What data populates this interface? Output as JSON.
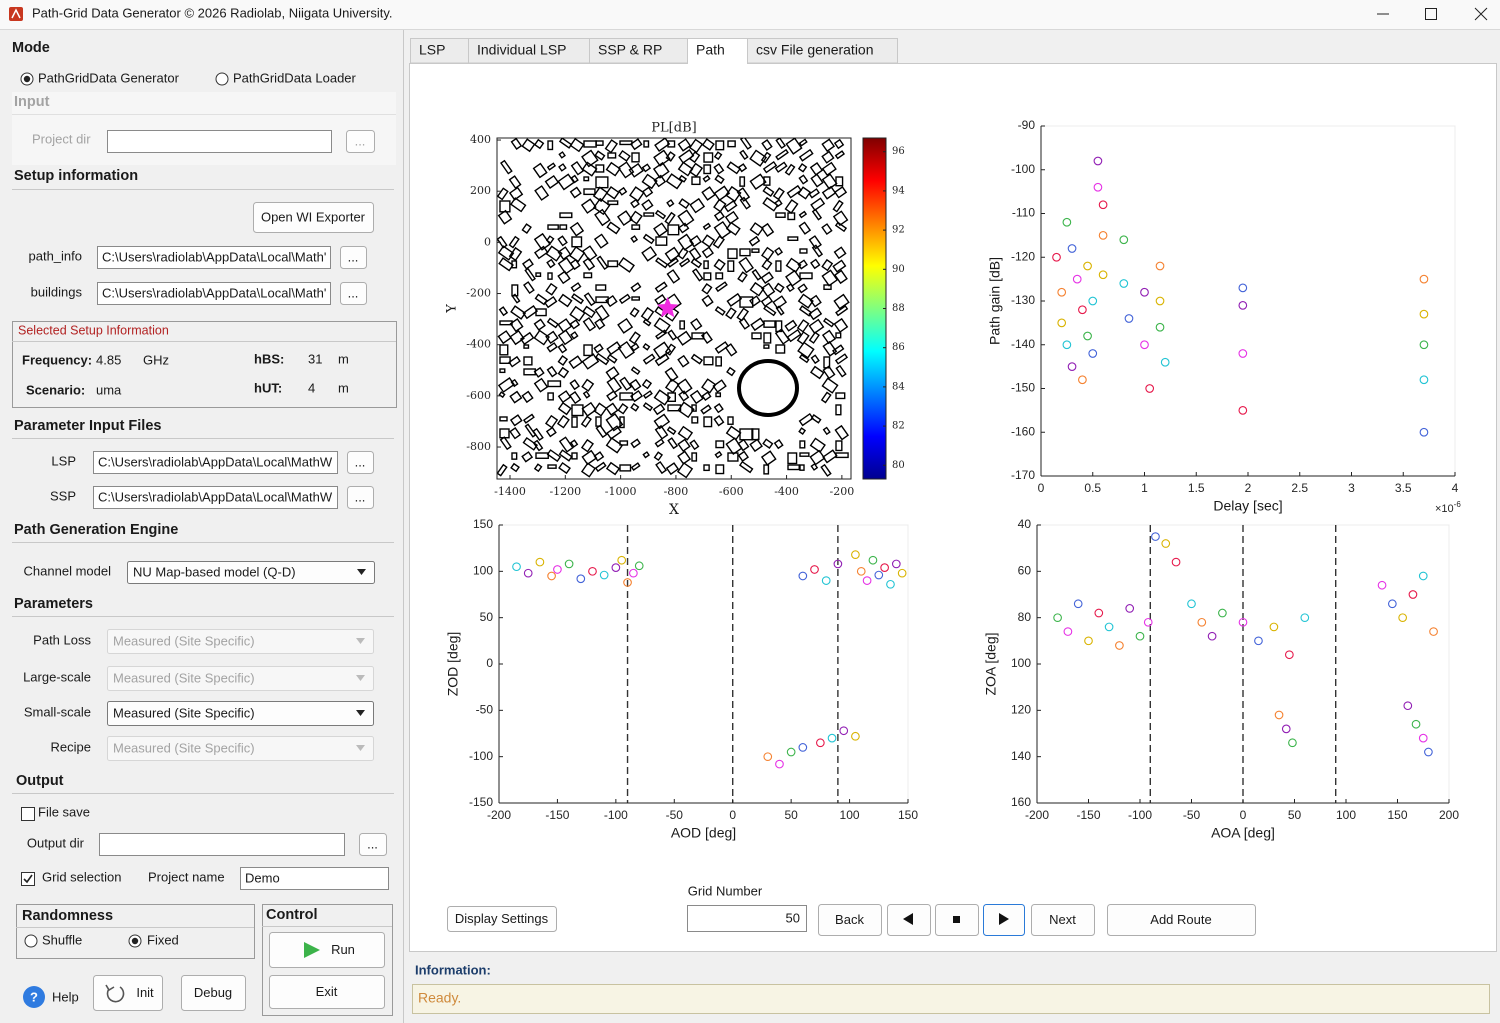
{
  "window": {
    "title": "Path-Grid Data Generator © 2026 Radiolab, Niigata University."
  },
  "mode": {
    "title": "Mode",
    "generator": "PathGridData Generator",
    "loader": "PathGridData Loader",
    "selected": "generator"
  },
  "input": {
    "title": "Input",
    "project_dir": "Project dir",
    "browse": "..."
  },
  "setup": {
    "title": "Setup information",
    "exporter": "Open WI Exporter",
    "path_info": {
      "label": "path_info",
      "value": "C:\\Users\\radiolab\\AppData\\Local\\Math'",
      "browse": "..."
    },
    "buildings": {
      "label": "buildings",
      "value": "C:\\Users\\radiolab\\AppData\\Local\\Math'",
      "browse": "..."
    }
  },
  "selected": {
    "title": "Selected Setup Information",
    "frequency_label": "Frequency:",
    "frequency": 4.85,
    "frequency_unit": "GHz",
    "hbs_label": "hBS:",
    "hbs": 31,
    "hbs_unit": "m",
    "scenario_label": "Scenario:",
    "scenario": "uma",
    "hut_label": "hUT:",
    "hut": 4,
    "hut_unit": "m"
  },
  "parameter_files": {
    "title": "Parameter Input Files",
    "lsp": {
      "label": "LSP",
      "value": "C:\\Users\\radiolab\\AppData\\Local\\MathW",
      "browse": "..."
    },
    "ssp": {
      "label": "SSP",
      "value": "C:\\Users\\radiolab\\AppData\\Local\\MathW",
      "browse": "..."
    }
  },
  "engine": {
    "title": "Path Generation Engine",
    "channel_model_label": "Channel model",
    "channel_model": "NU Map-based model (Q-D)"
  },
  "parameters": {
    "title": "Parameters",
    "rows": [
      {
        "label": "Path Loss",
        "value": "Measured (Site Specific)",
        "enabled": false
      },
      {
        "label": "Large-scale",
        "value": "Measured (Site Specific)",
        "enabled": false
      },
      {
        "label": "Small-scale",
        "value": "Measured (Site Specific)",
        "enabled": true
      },
      {
        "label": "Recipe",
        "value": "Measured (Site Specific)",
        "enabled": false
      }
    ]
  },
  "output": {
    "title": "Output",
    "file_save": "File save",
    "file_save_checked": false,
    "output_dir": "Output dir",
    "browse": "...",
    "grid_selection": "Grid selection",
    "grid_selection_checked": true,
    "project_name_label": "Project name",
    "project_name": "Demo"
  },
  "randomness": {
    "title": "Randomness",
    "shuffle": "Shuffle",
    "fixed": "Fixed",
    "selected": "fixed"
  },
  "control": {
    "title": "Control",
    "run": "Run",
    "exit": "Exit"
  },
  "footer": {
    "help_icon": "?",
    "help": "Help",
    "init": "Init",
    "debug": "Debug"
  },
  "tabs": {
    "items": [
      "LSP",
      "Individual LSP",
      "SSP & RP",
      "Path",
      "csv File generation"
    ],
    "active": 3
  },
  "chart_data": [
    {
      "type": "map",
      "title": "PL[dB]",
      "xlabel": "X",
      "ylabel": "Y",
      "xlim": [
        -1447,
        -167
      ],
      "xticks": [
        -1400,
        -1200,
        -1000,
        -800,
        -600,
        -400,
        -200
      ],
      "ylim": [
        -925,
        408
      ],
      "yticks": [
        -800,
        -600,
        -400,
        -200,
        0,
        200,
        400
      ],
      "colorbar": {
        "clim": [
          79.3,
          96.7
        ],
        "ticks": [
          80,
          82,
          84,
          86,
          88,
          90,
          92,
          94,
          96
        ]
      },
      "marker": {
        "x": -830,
        "y": -257,
        "color": "#f02ce0"
      }
    },
    {
      "type": "scatter",
      "xlabel": "Delay [sec]",
      "ylabel": "Path gain [dB]",
      "x_scale": {
        "base": "×10",
        "exponent": "-6"
      },
      "xlim": [
        0,
        4
      ],
      "xticks": [
        0,
        0.5,
        1,
        1.5,
        2,
        2.5,
        3,
        3.5,
        4
      ],
      "ylim": [
        -170,
        -90
      ],
      "yticks": [
        -170,
        -160,
        -150,
        -140,
        -130,
        -120,
        -110,
        -100,
        -90
      ],
      "palette": [
        "#e6194b",
        "#f58231",
        "#d9b300",
        "#3cb44b",
        "#22c4d4",
        "#4363d8",
        "#911eb4",
        "#e632e6"
      ],
      "x": [
        0.15,
        0.2,
        0.2,
        0.25,
        0.25,
        0.3,
        0.3,
        0.35,
        0.4,
        0.4,
        0.45,
        0.45,
        0.5,
        0.5,
        0.55,
        0.55,
        0.6,
        0.6,
        0.6,
        0.8,
        0.8,
        0.85,
        1.0,
        1.0,
        1.05,
        1.15,
        1.15,
        1.15,
        1.2,
        1.95,
        1.95,
        1.95,
        1.95,
        3.7,
        3.7,
        3.7,
        3.7,
        3.7
      ],
      "y": [
        -120,
        -128,
        -135,
        -112,
        -140,
        -118,
        -145,
        -125,
        -132,
        -148,
        -122,
        -138,
        -130,
        -142,
        -98,
        -104,
        -108,
        -115,
        -124,
        -116,
        -126,
        -134,
        -128,
        -140,
        -150,
        -122,
        -130,
        -136,
        -144,
        -127,
        -131,
        -142,
        -155,
        -125,
        -133,
        -140,
        -148,
        -160
      ]
    },
    {
      "type": "scatter",
      "xlabel": "AOD [deg]",
      "ylabel": "ZOD [deg]",
      "xlim": [
        -200,
        150
      ],
      "xticks": [
        -200,
        -150,
        -100,
        -50,
        0,
        50,
        100,
        150
      ],
      "ylim": [
        -150,
        150
      ],
      "yticks": [
        -150,
        -100,
        -50,
        0,
        50,
        100,
        150
      ],
      "vlines": [
        -90,
        0,
        90
      ],
      "palette": [
        "#22c4d4",
        "#911eb4",
        "#d9b300",
        "#f58231",
        "#e632e6",
        "#3cb44b",
        "#4363d8",
        "#e6194b"
      ],
      "x": [
        -185,
        -175,
        -165,
        -155,
        -150,
        -140,
        -130,
        -120,
        -110,
        -100,
        -95,
        -90,
        -85,
        -80,
        60,
        70,
        80,
        90,
        105,
        110,
        115,
        120,
        125,
        130,
        135,
        140,
        145,
        30,
        40,
        50,
        60,
        75,
        85,
        95,
        105
      ],
      "y": [
        105,
        98,
        110,
        95,
        102,
        108,
        92,
        100,
        96,
        104,
        112,
        88,
        98,
        106,
        95,
        102,
        90,
        108,
        118,
        100,
        90,
        112,
        96,
        104,
        86,
        108,
        98,
        -100,
        -108,
        -95,
        -90,
        -85,
        -80,
        -72,
        -78
      ]
    },
    {
      "type": "scatter",
      "xlabel": "AOA [deg]",
      "ylabel": "ZOA [deg]",
      "xlim": [
        -200,
        200
      ],
      "xticks": [
        -200,
        -150,
        -100,
        -50,
        0,
        50,
        100,
        150,
        200
      ],
      "ylim": [
        40,
        160
      ],
      "yticks": [
        40,
        60,
        80,
        100,
        120,
        140,
        160
      ],
      "y_reversed": true,
      "vlines": [
        -90,
        0,
        90
      ],
      "palette": [
        "#3cb44b",
        "#e632e6",
        "#4363d8",
        "#d9b300",
        "#e6194b",
        "#22c4d4",
        "#f58231",
        "#911eb4"
      ],
      "x": [
        -180,
        -170,
        -160,
        -150,
        -140,
        -130,
        -120,
        -110,
        -100,
        -92,
        -85,
        -75,
        -65,
        -50,
        -40,
        -30,
        -20,
        0,
        15,
        30,
        45,
        60,
        35,
        42,
        48,
        135,
        145,
        155,
        165,
        175,
        185,
        160,
        168,
        175,
        180
      ],
      "y": [
        80,
        86,
        74,
        90,
        78,
        84,
        92,
        76,
        88,
        82,
        45,
        48,
        56,
        74,
        82,
        88,
        78,
        82,
        90,
        84,
        96,
        80,
        122,
        128,
        134,
        66,
        74,
        80,
        70,
        62,
        86,
        118,
        126,
        132,
        138
      ]
    }
  ],
  "navigation": {
    "display_settings": "Display Settings",
    "grid_number_label": "Grid Number",
    "grid_number": 50,
    "back": "Back",
    "next": "Next",
    "add_route": "Add Route"
  },
  "information": {
    "title": "Information:",
    "message": "Ready."
  }
}
